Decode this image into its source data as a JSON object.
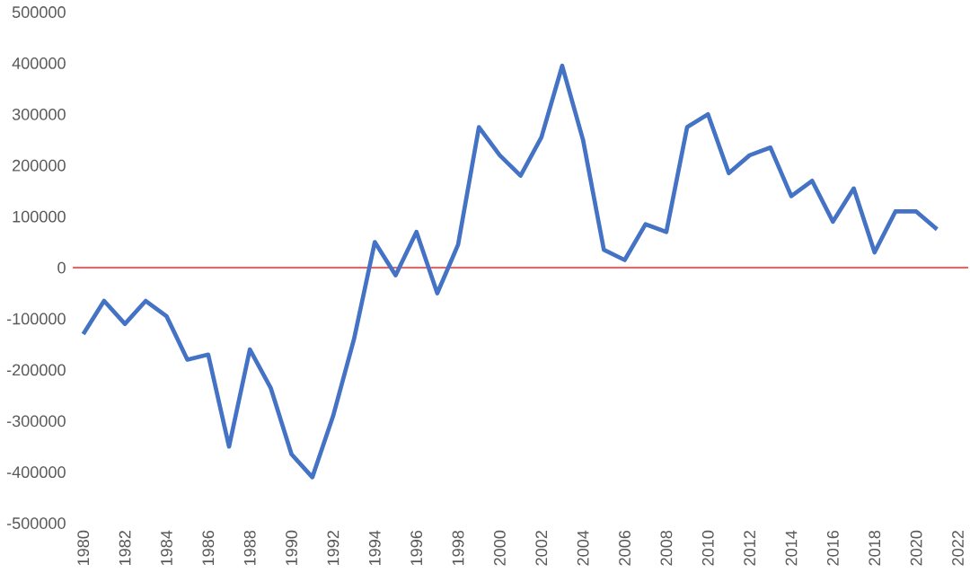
{
  "chart_data": {
    "type": "line",
    "categories": [
      "1980",
      null,
      "1982",
      null,
      "1984",
      null,
      "1986",
      null,
      "1988",
      null,
      "1990",
      null,
      "1992",
      null,
      "1994",
      null,
      "1996",
      null,
      "1998",
      null,
      "2000",
      null,
      "2002",
      null,
      "2004",
      null,
      "2006",
      null,
      "2008",
      null,
      "2010",
      null,
      "2012",
      null,
      "2014",
      null,
      "2016",
      null,
      "2018",
      null,
      "2020",
      null,
      "2022"
    ],
    "series": [
      {
        "color": "#4472c4",
        "values": [
          -130000,
          -65000,
          -110000,
          -65000,
          -95000,
          -180000,
          -170000,
          -350000,
          -160000,
          -235000,
          -365000,
          -410000,
          -290000,
          -140000,
          50000,
          -15000,
          70000,
          -50000,
          45000,
          275000,
          220000,
          180000,
          255000,
          395000,
          250000,
          35000,
          15000,
          85000,
          70000,
          275000,
          300000,
          185000,
          220000,
          235000,
          140000,
          170000,
          90000,
          155000,
          30000,
          110000,
          110000,
          75000,
          null
        ]
      }
    ],
    "ylim": [
      -500000,
      500000
    ],
    "yticks": [
      -500000,
      -400000,
      -300000,
      -200000,
      -100000,
      0,
      100000,
      200000,
      300000,
      400000,
      500000
    ],
    "ref_lines": [
      {
        "axis": "y",
        "value": 0,
        "color": "#ff5b5b"
      }
    ],
    "grid": false
  }
}
